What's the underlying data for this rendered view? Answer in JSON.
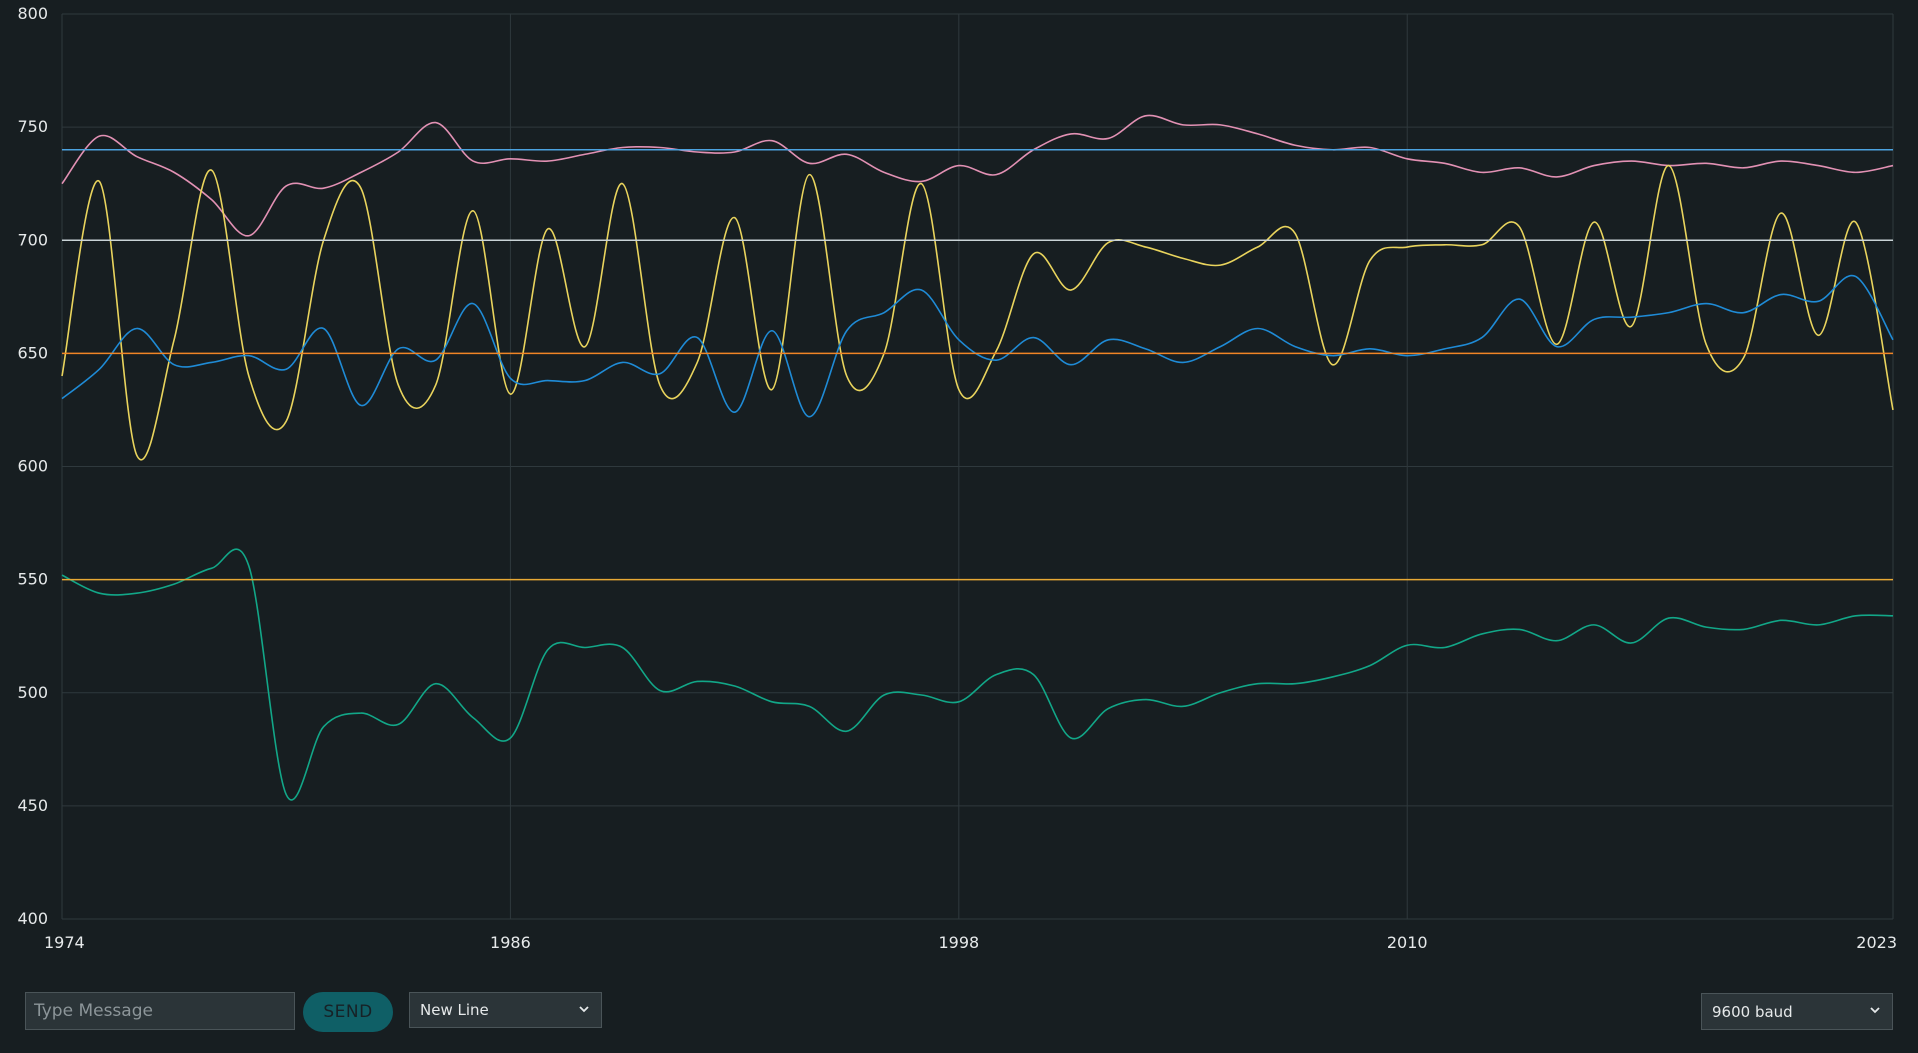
{
  "chart_data": {
    "type": "line",
    "x_range": [
      1974,
      2023
    ],
    "ylim": [
      400,
      800
    ],
    "y_ticks": [
      400,
      450,
      500,
      550,
      600,
      650,
      700,
      750,
      800
    ],
    "x_ticks": [
      1974,
      1986,
      1998,
      2010,
      2023
    ],
    "grid": true,
    "series": [
      {
        "color": "#e291b4",
        "points": [
          [
            1974,
            725
          ],
          [
            1975,
            746
          ],
          [
            1976,
            737
          ],
          [
            1977,
            730
          ],
          [
            1978,
            718
          ],
          [
            1979,
            702
          ],
          [
            1980,
            724
          ],
          [
            1981,
            723
          ],
          [
            1982,
            730
          ],
          [
            1983,
            739
          ],
          [
            1984,
            752
          ],
          [
            1985,
            735
          ],
          [
            1986,
            736
          ],
          [
            1987,
            735
          ],
          [
            1988,
            738
          ],
          [
            1989,
            741
          ],
          [
            1990,
            741
          ],
          [
            1991,
            739
          ],
          [
            1992,
            739
          ],
          [
            1993,
            744
          ],
          [
            1994,
            734
          ],
          [
            1995,
            738
          ],
          [
            1996,
            730
          ],
          [
            1997,
            726
          ],
          [
            1998,
            733
          ],
          [
            1999,
            729
          ],
          [
            2000,
            740
          ],
          [
            2001,
            747
          ],
          [
            2002,
            745
          ],
          [
            2003,
            755
          ],
          [
            2004,
            751
          ],
          [
            2005,
            751
          ],
          [
            2006,
            747
          ],
          [
            2007,
            742
          ],
          [
            2008,
            740
          ],
          [
            2009,
            741
          ],
          [
            2010,
            736
          ],
          [
            2011,
            734
          ],
          [
            2012,
            730
          ],
          [
            2013,
            732
          ],
          [
            2014,
            728
          ],
          [
            2015,
            733
          ],
          [
            2016,
            735
          ],
          [
            2017,
            733
          ],
          [
            2018,
            734
          ],
          [
            2019,
            732
          ],
          [
            2020,
            735
          ],
          [
            2021,
            733
          ],
          [
            2022,
            730
          ],
          [
            2023,
            733
          ]
        ]
      },
      {
        "color": "#e9d45d",
        "points": [
          [
            1974,
            640
          ],
          [
            1975,
            726
          ],
          [
            1976,
            605
          ],
          [
            1977,
            656
          ],
          [
            1978,
            731
          ],
          [
            1979,
            640
          ],
          [
            1980,
            620
          ],
          [
            1981,
            700
          ],
          [
            1982,
            723
          ],
          [
            1983,
            636
          ],
          [
            1984,
            636
          ],
          [
            1985,
            713
          ],
          [
            1986,
            632
          ],
          [
            1987,
            705
          ],
          [
            1988,
            653
          ],
          [
            1989,
            725
          ],
          [
            1990,
            636
          ],
          [
            1991,
            646
          ],
          [
            1992,
            710
          ],
          [
            1993,
            634
          ],
          [
            1994,
            729
          ],
          [
            1995,
            640
          ],
          [
            1996,
            650
          ],
          [
            1997,
            725
          ],
          [
            1998,
            634
          ],
          [
            1999,
            651
          ],
          [
            2000,
            694
          ],
          [
            2001,
            678
          ],
          [
            2002,
            699
          ],
          [
            2003,
            697
          ],
          [
            2004,
            692
          ],
          [
            2005,
            689
          ],
          [
            2006,
            697
          ],
          [
            2007,
            703
          ],
          [
            2008,
            645
          ],
          [
            2009,
            691
          ],
          [
            2010,
            697
          ],
          [
            2011,
            698
          ],
          [
            2012,
            698
          ],
          [
            2013,
            706
          ],
          [
            2014,
            654
          ],
          [
            2015,
            708
          ],
          [
            2016,
            662
          ],
          [
            2017,
            733
          ],
          [
            2018,
            654
          ],
          [
            2019,
            648
          ],
          [
            2020,
            712
          ],
          [
            2021,
            658
          ],
          [
            2022,
            708
          ],
          [
            2023,
            625
          ]
        ]
      },
      {
        "color": "#1f8bd6",
        "points": [
          [
            1974,
            630
          ],
          [
            1975,
            643
          ],
          [
            1976,
            661
          ],
          [
            1977,
            645
          ],
          [
            1978,
            646
          ],
          [
            1979,
            649
          ],
          [
            1980,
            643
          ],
          [
            1981,
            661
          ],
          [
            1982,
            627
          ],
          [
            1983,
            652
          ],
          [
            1984,
            647
          ],
          [
            1985,
            672
          ],
          [
            1986,
            639
          ],
          [
            1987,
            638
          ],
          [
            1988,
            638
          ],
          [
            1989,
            646
          ],
          [
            1990,
            641
          ],
          [
            1991,
            657
          ],
          [
            1992,
            624
          ],
          [
            1993,
            660
          ],
          [
            1994,
            622
          ],
          [
            1995,
            660
          ],
          [
            1996,
            668
          ],
          [
            1997,
            678
          ],
          [
            1998,
            656
          ],
          [
            1999,
            647
          ],
          [
            2000,
            657
          ],
          [
            2001,
            645
          ],
          [
            2002,
            656
          ],
          [
            2003,
            652
          ],
          [
            2004,
            646
          ],
          [
            2005,
            653
          ],
          [
            2006,
            661
          ],
          [
            2007,
            653
          ],
          [
            2008,
            649
          ],
          [
            2009,
            652
          ],
          [
            2010,
            649
          ],
          [
            2011,
            652
          ],
          [
            2012,
            657
          ],
          [
            2013,
            674
          ],
          [
            2014,
            653
          ],
          [
            2015,
            665
          ],
          [
            2016,
            666
          ],
          [
            2017,
            668
          ],
          [
            2018,
            672
          ],
          [
            2019,
            668
          ],
          [
            2020,
            676
          ],
          [
            2021,
            673
          ],
          [
            2022,
            684
          ],
          [
            2023,
            656
          ]
        ]
      },
      {
        "color": "#12a788",
        "points": [
          [
            1974,
            552
          ],
          [
            1975,
            544
          ],
          [
            1976,
            544
          ],
          [
            1977,
            548
          ],
          [
            1978,
            555
          ],
          [
            1979,
            556
          ],
          [
            1980,
            455
          ],
          [
            1981,
            485
          ],
          [
            1982,
            491
          ],
          [
            1983,
            486
          ],
          [
            1984,
            504
          ],
          [
            1985,
            489
          ],
          [
            1986,
            480
          ],
          [
            1987,
            519
          ],
          [
            1988,
            520
          ],
          [
            1989,
            520
          ],
          [
            1990,
            501
          ],
          [
            1991,
            505
          ],
          [
            1992,
            503
          ],
          [
            1993,
            496
          ],
          [
            1994,
            494
          ],
          [
            1995,
            483
          ],
          [
            1996,
            499
          ],
          [
            1997,
            499
          ],
          [
            1998,
            496
          ],
          [
            1999,
            508
          ],
          [
            2000,
            508
          ],
          [
            2001,
            480
          ],
          [
            2002,
            493
          ],
          [
            2003,
            497
          ],
          [
            2004,
            494
          ],
          [
            2005,
            500
          ],
          [
            2006,
            504
          ],
          [
            2007,
            504
          ],
          [
            2008,
            507
          ],
          [
            2009,
            512
          ],
          [
            2010,
            521
          ],
          [
            2011,
            520
          ],
          [
            2012,
            526
          ],
          [
            2013,
            528
          ],
          [
            2014,
            523
          ],
          [
            2015,
            530
          ],
          [
            2016,
            522
          ],
          [
            2017,
            533
          ],
          [
            2018,
            529
          ],
          [
            2019,
            528
          ],
          [
            2020,
            532
          ],
          [
            2021,
            530
          ],
          [
            2022,
            534
          ],
          [
            2023,
            534
          ]
        ]
      },
      {
        "color": "#4ca3e0",
        "points": [
          [
            1974,
            740
          ],
          [
            2023,
            740
          ]
        ]
      },
      {
        "color": "#c9d3d6",
        "points": [
          [
            1974,
            700
          ],
          [
            2023,
            700
          ]
        ]
      },
      {
        "color": "#f08526",
        "points": [
          [
            1974,
            650
          ],
          [
            2023,
            650
          ]
        ]
      },
      {
        "color": "#e8a935",
        "points": [
          [
            1974,
            550
          ],
          [
            2023,
            550
          ]
        ]
      }
    ]
  },
  "toolbar": {
    "message_placeholder": "Type Message",
    "send_label": "SEND",
    "line_ending": "New Line",
    "baud_rate": "9600 baud",
    "icons": [
      "chevron-down-icon"
    ]
  }
}
